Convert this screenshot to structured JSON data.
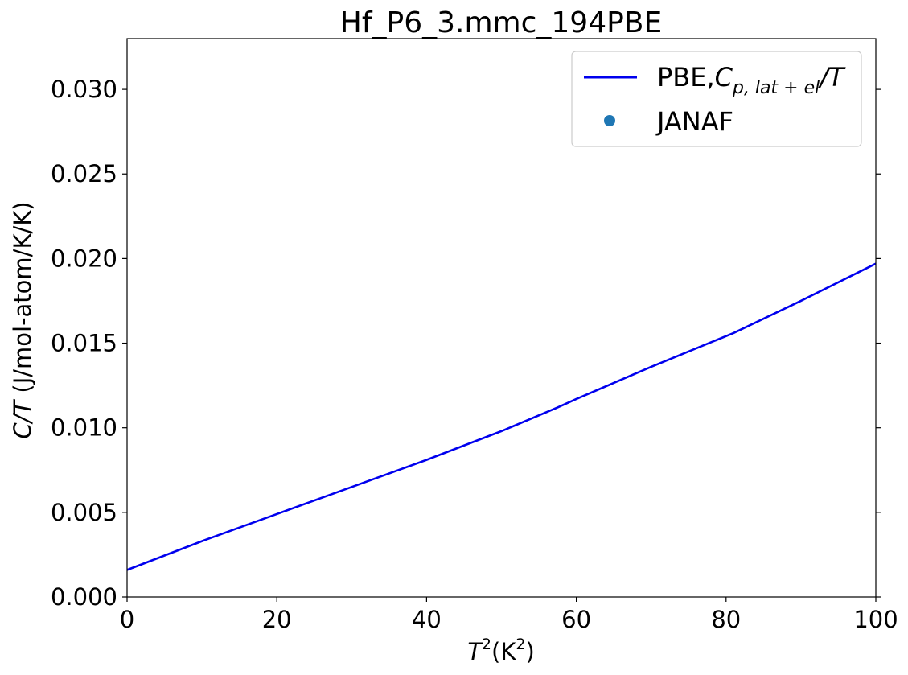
{
  "chart_data": {
    "type": "line",
    "title": "Hf_P6_3.mmc_194PBE",
    "xlabel": {
      "base": "T",
      "sup": "2",
      "unit_open": "(K",
      "unit_sup": "2",
      "unit_close": ")"
    },
    "ylabel": {
      "italic": "C/T",
      "rest": " (J/mol-atom/K/K)"
    },
    "xlim": [
      0,
      100
    ],
    "ylim": [
      0,
      0.033
    ],
    "x_ticks": [
      0,
      20,
      40,
      60,
      80,
      100
    ],
    "x_tick_labels": [
      "0",
      "20",
      "40",
      "60",
      "80",
      "100"
    ],
    "y_ticks": [
      0,
      0.005,
      0.01,
      0.015,
      0.02,
      0.025,
      0.03
    ],
    "y_tick_labels": [
      "0.000",
      "0.005",
      "0.010",
      "0.015",
      "0.020",
      "0.025",
      "0.030"
    ],
    "grid": false,
    "legend_position": "top-right",
    "series": [
      {
        "name": "PBE,C_{p,lat+el}/T",
        "legend": {
          "prefix": "PBE,",
          "italic": "C",
          "sub": "p, lat + el",
          "suffix": "/T"
        },
        "color": "#0000ee",
        "style": "line",
        "x": [
          0,
          10,
          20,
          30,
          40,
          50,
          57.5,
          60,
          70,
          81,
          90,
          100
        ],
        "y": [
          0.0016,
          0.0033,
          0.0049,
          0.0065,
          0.0081,
          0.0098,
          0.0112,
          0.0117,
          0.0136,
          0.0156,
          0.0175,
          0.0197
        ]
      },
      {
        "name": "JANAF",
        "legend": {
          "prefix": "JANAF",
          "italic": "",
          "sub": "",
          "suffix": ""
        },
        "color": "#1f77b4",
        "style": "marker",
        "x": [],
        "y": []
      }
    ]
  }
}
